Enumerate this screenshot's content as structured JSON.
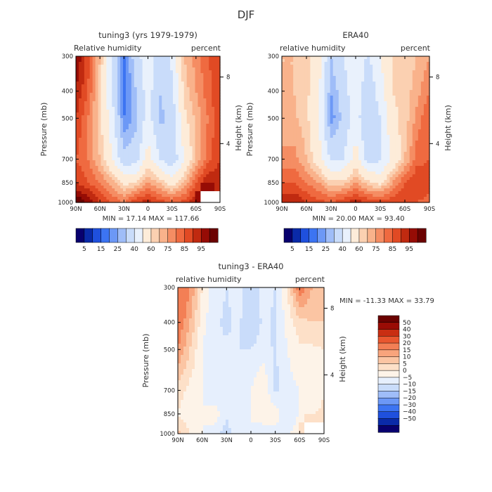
{
  "figure_title": "DJF",
  "colors": {
    "model_obs_scale": [
      "#08006e",
      "#0a2aa8",
      "#1f50dd",
      "#3c74f2",
      "#6c98f6",
      "#9fbdf8",
      "#c9dcfa",
      "#e9f1fc",
      "#fdecd9",
      "#fbd0b1",
      "#f9b28b",
      "#f58d63",
      "#ef6a40",
      "#e14a24",
      "#c02a10",
      "#960c05",
      "#6b0201"
    ],
    "diff_scale": [
      "#08006e",
      "#0a2aa8",
      "#1f50dd",
      "#3c74f2",
      "#6c98f6",
      "#9fbdf8",
      "#c9dcfa",
      "#e6effd",
      "#fdf3e8",
      "#fde0c8",
      "#fbc5a3",
      "#f8a47c",
      "#f37f55",
      "#e9572f",
      "#c92e12",
      "#9a0c05",
      "#6b0201"
    ],
    "nodata": "#ffffff"
  },
  "chart_data": [
    {
      "id": "model",
      "type": "heatmap",
      "title": "tuning3 (yrs 1979-1979)",
      "left_label": "Relative humidity",
      "right_label": "percent",
      "ylabel": "Pressure (mb)",
      "right_axis_label": "Height (km)",
      "x_ticks": [
        "90N",
        "60N",
        "30N",
        "0",
        "30S",
        "60S",
        "90S"
      ],
      "y_ticks": [
        "300",
        "400",
        "500",
        "700",
        "850",
        "1000"
      ],
      "right_ticks": [
        "8",
        "4"
      ],
      "stats": "MIN =   17.14   MAX = 117.66",
      "x": [
        "90N",
        "75N",
        "60N",
        "45N",
        "30N",
        "15N",
        "0",
        "15S",
        "30S",
        "45S",
        "60S",
        "75S",
        "90S"
      ],
      "y": [
        300,
        400,
        500,
        700,
        850,
        1000
      ],
      "values": [
        [
          95,
          82,
          65,
          42,
          18,
          35,
          48,
          33,
          42,
          65,
          72,
          80,
          82
        ],
        [
          90,
          80,
          62,
          40,
          17,
          30,
          45,
          30,
          38,
          62,
          70,
          78,
          85
        ],
        [
          85,
          75,
          62,
          45,
          20,
          28,
          45,
          28,
          32,
          58,
          66,
          75,
          85
        ],
        [
          80,
          75,
          65,
          50,
          33,
          35,
          55,
          40,
          32,
          50,
          65,
          78,
          85
        ],
        [
          85,
          80,
          75,
          68,
          58,
          60,
          70,
          64,
          55,
          65,
          80,
          90,
          88
        ],
        [
          100,
          95,
          85,
          80,
          75,
          85,
          88,
          82,
          80,
          82,
          90,
          null,
          null
        ]
      ],
      "levels": [
        5,
        10,
        15,
        20,
        25,
        30,
        40,
        50,
        60,
        65,
        70,
        75,
        80,
        85,
        90,
        95
      ],
      "colorbar_labels": [
        "5",
        "15",
        "25",
        "40",
        "60",
        "75",
        "85",
        "95"
      ]
    },
    {
      "id": "obs",
      "type": "heatmap",
      "title": "ERA40",
      "left_label": "relative humidity",
      "right_label": "percent",
      "ylabel": "Pressure (mb)",
      "right_axis_label": "Height (km)",
      "x_ticks": [
        "90N",
        "60N",
        "30N",
        "0",
        "30S",
        "60S",
        "90S"
      ],
      "y_ticks": [
        "300",
        "400",
        "500",
        "700",
        "850",
        "1000"
      ],
      "right_ticks": [
        "8",
        "4"
      ],
      "stats": "MIN =   20.00   MAX =   93.40",
      "x": [
        "90N",
        "75N",
        "60N",
        "45N",
        "30N",
        "15N",
        "0",
        "15S",
        "30S",
        "45S",
        "60S",
        "75S",
        "90S"
      ],
      "y": [
        300,
        400,
        500,
        700,
        850,
        1000
      ],
      "values": [
        [
          65,
          65,
          62,
          55,
          30,
          40,
          50,
          38,
          50,
          60,
          62,
          65,
          70
        ],
        [
          65,
          65,
          62,
          52,
          25,
          35,
          48,
          32,
          45,
          60,
          62,
          68,
          75
        ],
        [
          65,
          66,
          62,
          50,
          22,
          32,
          45,
          30,
          40,
          58,
          62,
          72,
          80
        ],
        [
          72,
          72,
          65,
          55,
          38,
          40,
          55,
          35,
          38,
          52,
          65,
          78,
          80
        ],
        [
          80,
          80,
          75,
          70,
          62,
          62,
          70,
          62,
          58,
          70,
          80,
          85,
          82
        ],
        [
          88,
          90,
          85,
          82,
          80,
          85,
          88,
          84,
          82,
          84,
          85,
          80,
          78
        ]
      ],
      "levels": [
        5,
        10,
        15,
        20,
        25,
        30,
        40,
        50,
        60,
        65,
        70,
        75,
        80,
        85,
        90,
        95
      ],
      "colorbar_labels": [
        "5",
        "15",
        "25",
        "40",
        "60",
        "75",
        "85",
        "95"
      ]
    },
    {
      "id": "diff",
      "type": "heatmap",
      "title": "tuning3 - ERA40",
      "left_label": "relative humidity",
      "right_label": "percent",
      "ylabel": "Pressure (mb)",
      "right_axis_label": "Height (km)",
      "x_ticks": [
        "90N",
        "60N",
        "30N",
        "0",
        "30S",
        "60S",
        "90S"
      ],
      "y_ticks": [
        "300",
        "400",
        "500",
        "700",
        "850",
        "1000"
      ],
      "right_ticks": [
        "8",
        "4"
      ],
      "stats": "MIN = -11.33   MAX =   33.79",
      "x": [
        "90N",
        "75N",
        "60N",
        "45N",
        "30N",
        "15N",
        "0",
        "15S",
        "30S",
        "45S",
        "60S",
        "75S",
        "90S"
      ],
      "y": [
        300,
        400,
        500,
        700,
        850,
        1000
      ],
      "values": [
        [
          30,
          20,
          5,
          -3,
          -5,
          -3,
          -8,
          -3,
          -5,
          5,
          25,
          15,
          10
        ],
        [
          25,
          15,
          2,
          -4,
          -6,
          -4,
          -10,
          -4,
          -6,
          2,
          8,
          10,
          10
        ],
        [
          20,
          10,
          0,
          -5,
          -4,
          -5,
          -5,
          -2,
          -6,
          0,
          4,
          4,
          5
        ],
        [
          8,
          3,
          0,
          -5,
          -5,
          -5,
          0,
          5,
          -6,
          -2,
          0,
          0,
          5
        ],
        [
          5,
          0,
          0,
          3,
          -4,
          -2,
          0,
          2,
          3,
          -5,
          0,
          5,
          6
        ],
        [
          12,
          5,
          0,
          -2,
          -8,
          0,
          0,
          -2,
          -2,
          -2,
          5,
          null,
          null
        ]
      ],
      "levels": [
        -50,
        -40,
        -30,
        -20,
        -15,
        -10,
        -5,
        0,
        5,
        10,
        15,
        20,
        30,
        40,
        50
      ],
      "colorbar_labels": [
        "50",
        "40",
        "30",
        "20",
        "15",
        "10",
        "5",
        "0",
        "−5",
        "−10",
        "−15",
        "−20",
        "−30",
        "−40",
        "−50"
      ]
    }
  ]
}
